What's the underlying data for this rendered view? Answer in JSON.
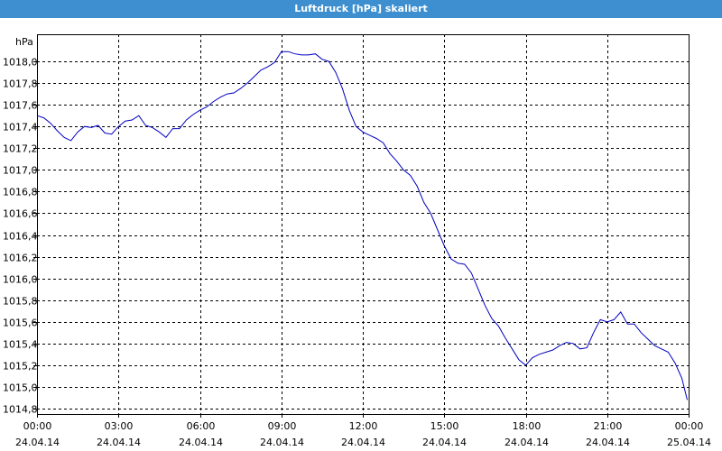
{
  "window_title": "Luftdruck [hPa] skaliert",
  "chart_data": {
    "type": "line",
    "title": "Luftdruck [hPa] skaliert",
    "ylabel": "hPa",
    "xlabel": "",
    "ylim": [
      1014.75,
      1018.25
    ],
    "xlim": [
      0,
      24
    ],
    "grid": true,
    "y_ticks": [
      "1014,8",
      "1015,0",
      "1015,2",
      "1015,4",
      "1015,6",
      "1015,8",
      "1016,0",
      "1016,2",
      "1016,4",
      "1016,6",
      "1016,8",
      "1017,0",
      "1017,2",
      "1017,4",
      "1017,6",
      "1017,8",
      "1018,0"
    ],
    "x_ticks": [
      {
        "time": "00:00",
        "date": "24.04.14"
      },
      {
        "time": "03:00",
        "date": "24.04.14"
      },
      {
        "time": "06:00",
        "date": "24.04.14"
      },
      {
        "time": "09:00",
        "date": "24.04.14"
      },
      {
        "time": "12:00",
        "date": "24.04.14"
      },
      {
        "time": "15:00",
        "date": "24.04.14"
      },
      {
        "time": "18:00",
        "date": "24.04.14"
      },
      {
        "time": "21:00",
        "date": "24.04.14"
      },
      {
        "time": "00:00",
        "date": "25.04.14"
      }
    ],
    "series": [
      {
        "color": "#0000c0",
        "x": [
          0.0,
          0.25,
          0.5,
          0.75,
          1.0,
          1.25,
          1.5,
          1.75,
          2.0,
          2.25,
          2.5,
          2.75,
          3.0,
          3.25,
          3.5,
          3.75,
          4.0,
          4.25,
          4.5,
          4.75,
          5.0,
          5.25,
          5.5,
          5.75,
          6.0,
          6.25,
          6.5,
          6.75,
          7.0,
          7.25,
          7.5,
          7.75,
          8.0,
          8.25,
          8.5,
          8.75,
          9.0,
          9.25,
          9.5,
          9.75,
          10.0,
          10.25,
          10.5,
          10.75,
          11.0,
          11.25,
          11.5,
          11.75,
          12.0,
          12.25,
          12.5,
          12.75,
          13.0,
          13.25,
          13.5,
          13.75,
          14.0,
          14.25,
          14.5,
          14.75,
          15.0,
          15.25,
          15.5,
          15.75,
          16.0,
          16.25,
          16.5,
          16.75,
          17.0,
          17.25,
          17.5,
          17.75,
          18.0,
          18.25,
          18.5,
          18.75,
          19.0,
          19.25,
          19.5,
          19.75,
          20.0,
          20.25,
          20.5,
          20.75,
          21.0,
          21.25,
          21.5,
          21.75,
          22.0,
          22.25,
          22.5,
          22.75,
          23.0,
          23.25,
          23.5,
          23.75,
          23.95
        ],
        "y": [
          1017.5,
          1017.48,
          1017.43,
          1017.36,
          1017.3,
          1017.27,
          1017.35,
          1017.4,
          1017.39,
          1017.41,
          1017.34,
          1017.33,
          1017.4,
          1017.45,
          1017.46,
          1017.5,
          1017.41,
          1017.39,
          1017.35,
          1017.3,
          1017.38,
          1017.38,
          1017.46,
          1017.51,
          1017.55,
          1017.58,
          1017.63,
          1017.67,
          1017.7,
          1017.71,
          1017.75,
          1017.8,
          1017.86,
          1017.92,
          1017.95,
          1017.99,
          1018.09,
          1018.09,
          1018.07,
          1018.06,
          1018.06,
          1018.07,
          1018.02,
          1018.0,
          1017.9,
          1017.75,
          1017.55,
          1017.4,
          1017.35,
          1017.32,
          1017.29,
          1017.25,
          1017.15,
          1017.08,
          1017.0,
          1016.95,
          1016.85,
          1016.7,
          1016.6,
          1016.45,
          1016.3,
          1016.18,
          1016.14,
          1016.13,
          1016.05,
          1015.9,
          1015.75,
          1015.63,
          1015.56,
          1015.45,
          1015.35,
          1015.25,
          1015.2,
          1015.27,
          1015.3,
          1015.32,
          1015.34,
          1015.38,
          1015.41,
          1015.4,
          1015.35,
          1015.36,
          1015.5,
          1015.62,
          1015.6,
          1015.62,
          1015.69,
          1015.58,
          1015.58,
          1015.5,
          1015.44,
          1015.38,
          1015.35,
          1015.32,
          1015.22,
          1015.08,
          1014.88
        ]
      }
    ]
  }
}
